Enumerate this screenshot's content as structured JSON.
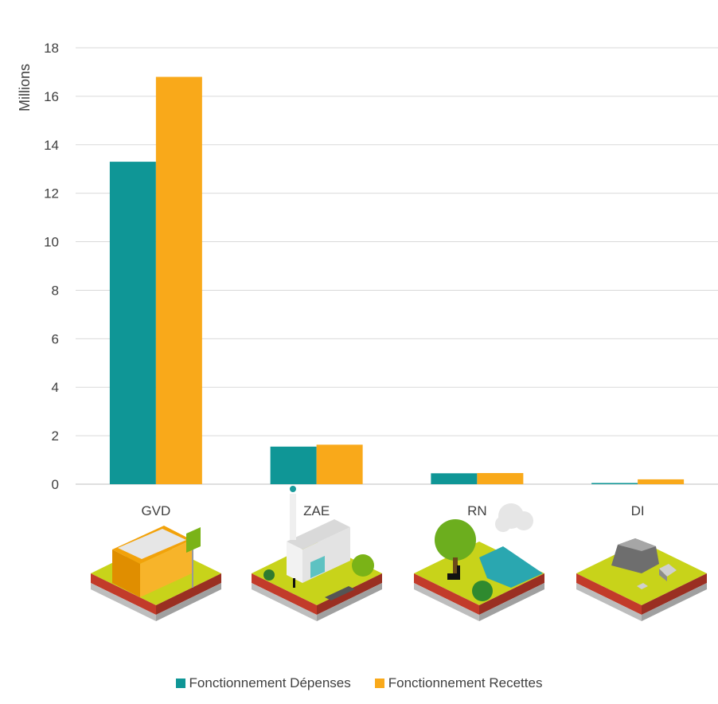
{
  "chart_data": {
    "type": "bar",
    "ylabel": "Millions",
    "ylim": [
      0,
      18
    ],
    "yticks": [
      0,
      2,
      4,
      6,
      8,
      10,
      12,
      14,
      16,
      18
    ],
    "grid": true,
    "legend_position": "bottom",
    "categories": [
      "GVD",
      "ZAE",
      "RN",
      "DI"
    ],
    "series": [
      {
        "name": "Fonctionnement Dépenses",
        "color": "#0f9696",
        "values": [
          13.3,
          1.55,
          0.45,
          0.05
        ]
      },
      {
        "name": "Fonctionnement Recettes",
        "color": "#f9a91a",
        "values": [
          16.8,
          1.63,
          0.46,
          0.2
        ]
      }
    ],
    "category_icons": [
      "building-site-icon",
      "factory-icon",
      "nature-reserve-icon",
      "rocks-icon"
    ]
  }
}
